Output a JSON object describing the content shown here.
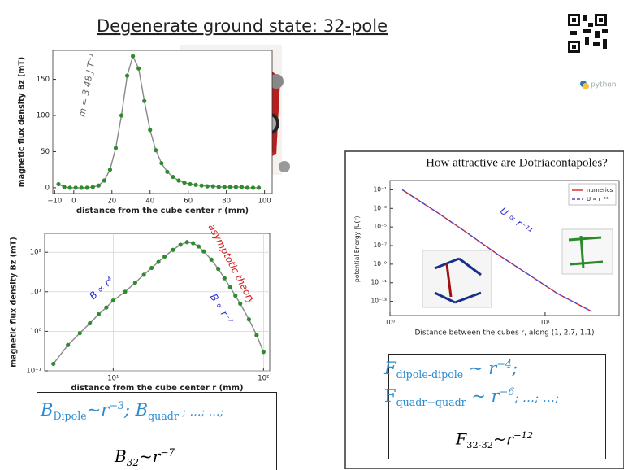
{
  "title": "Degenerate ground state: 32-pole",
  "logo_text": "python",
  "chart_data": [
    {
      "type": "line",
      "mode": "markers+line",
      "xlabel": "distance from the cube center r (mm)",
      "ylabel": "magnetic flux density Bz (mT)",
      "x": [
        -8,
        -5,
        -2,
        1,
        4,
        7,
        10,
        13,
        16,
        19,
        22,
        25,
        28,
        31,
        34,
        37,
        40,
        43,
        46,
        49,
        52,
        55,
        58,
        61,
        64,
        67,
        70,
        73,
        76,
        79,
        82,
        85,
        88,
        91,
        94,
        97
      ],
      "series": [
        {
          "color": "#2e8b2e",
          "line_color": "#888888",
          "values": [
            5,
            1,
            0,
            0,
            0,
            0,
            1,
            3,
            10,
            25,
            55,
            100,
            155,
            182,
            165,
            120,
            80,
            52,
            34,
            22,
            15,
            10,
            7,
            5,
            4,
            3,
            2,
            2,
            1,
            1,
            1,
            1,
            1,
            0,
            0,
            0
          ]
        }
      ],
      "xlim": [
        -11,
        104
      ],
      "ylim": [
        -8,
        190
      ],
      "xticks": [
        {
          "value": -10,
          "label": "−10"
        },
        0,
        20,
        40,
        60,
        80,
        100
      ],
      "yticks": [
        0,
        50,
        100,
        150
      ],
      "annotations": [
        "m = 3.48 J T⁻¹"
      ],
      "grid": false
    },
    {
      "type": "line",
      "mode": "markers+line",
      "xscale": "log",
      "yscale": "log",
      "xlabel": "distance from the cube center r (mm)",
      "ylabel": "magnetic flux density Bz (mT)",
      "x": [
        4,
        5,
        6,
        7,
        8,
        9,
        10,
        12,
        14,
        16,
        18,
        20,
        22,
        25,
        28,
        31,
        34,
        37,
        40,
        45,
        50,
        55,
        60,
        65,
        70,
        80,
        90,
        100
      ],
      "series": [
        {
          "color": "#2e8b2e",
          "line_color": "#888888",
          "values": [
            0.15,
            0.45,
            0.9,
            1.6,
            2.7,
            4,
            6,
            10,
            17,
            27,
            40,
            57,
            78,
            115,
            155,
            180,
            170,
            140,
            105,
            65,
            38,
            22,
            13,
            8,
            5,
            2,
            0.8,
            0.3
          ]
        }
      ],
      "xlim": [
        3.5,
        110
      ],
      "ylim": [
        0.1,
        300
      ],
      "xticks": [
        {
          "value": 10,
          "label": "10¹"
        },
        {
          "value": 100,
          "label": "10²"
        }
      ],
      "yticks": [
        {
          "value": 0.1,
          "label": "10⁻¹"
        },
        {
          "value": 1,
          "label": "10⁰"
        },
        {
          "value": 10,
          "label": "10¹"
        },
        {
          "value": 100,
          "label": "10²"
        }
      ],
      "annotations": [
        "B ∝ r⁴",
        "B ∝ r⁻⁷",
        "asymptotic theory"
      ],
      "grid": true
    },
    {
      "type": "line",
      "mode": "line",
      "xscale": "log",
      "yscale": "log",
      "title": "How attractive are Dotriacontapoles?",
      "xlabel": "Distance between the cubes r, along (1, 2.7, 1.1)",
      "ylabel": "potential Energy |U(r)|",
      "x": [
        1.2,
        2,
        3,
        5,
        8,
        12,
        20
      ],
      "series": [
        {
          "name": "numerics",
          "color": "#d62728",
          "values": [
            0.1,
            0.0004,
            4e-06,
            1e-08,
            6e-11,
            7e-13,
            8e-15
          ]
        },
        {
          "name": "U ∝ r⁻¹¹",
          "color": "#4b4bd6",
          "dashed": true,
          "values": [
            0.1,
            0.0004,
            4e-06,
            1e-08,
            6e-11,
            7e-13,
            8e-15
          ]
        }
      ],
      "xlim": [
        1,
        30
      ],
      "ylim": [
        3e-15,
        1
      ],
      "xticks": [
        {
          "value": 1,
          "label": "10⁰"
        },
        {
          "value": 10,
          "label": "10¹"
        }
      ],
      "yticks": [
        {
          "value": 0.1,
          "label": "10⁻¹"
        },
        {
          "value": 0.001,
          "label": "10⁻³"
        },
        {
          "value": 1e-05,
          "label": "10⁻⁵"
        },
        {
          "value": 1e-07,
          "label": "10⁻⁷"
        },
        {
          "value": 1e-09,
          "label": "10⁻⁹"
        },
        {
          "value": 1e-11,
          "label": "10⁻¹¹"
        },
        {
          "value": 1e-13,
          "label": "10⁻¹³"
        }
      ],
      "annotations": [
        "U ∝ r⁻¹¹"
      ],
      "legend": "upper right",
      "grid": false
    }
  ],
  "field_formulas": {
    "line1": [
      "B",
      "Dipole",
      "~r",
      "−3",
      "; ",
      "B",
      "quadr",
      " ; …; …;"
    ],
    "line2": [
      "B",
      "32",
      "~r",
      "−7"
    ]
  },
  "force_formulas": {
    "line1": [
      "F",
      "dipole-dipole",
      " ~ r",
      "−4",
      ";"
    ],
    "line2": [
      "F",
      "quadr−quadr",
      " ~ r",
      "−6",
      "; …; …;"
    ],
    "line3": [
      "F",
      "32-32",
      "~r",
      "−12"
    ]
  }
}
